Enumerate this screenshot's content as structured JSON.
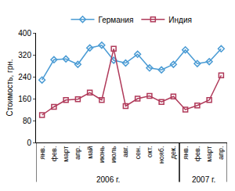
{
  "chart_data": {
    "type": "line",
    "y_label": "Стоимость, грн.",
    "categories": [
      "янв.",
      "фев.",
      "март",
      "апр.",
      "май",
      "июнь",
      "июль",
      "авг.",
      "сен.",
      "окт.",
      "нояб.",
      "дек.",
      "янв.",
      "фев.",
      "март",
      "апр."
    ],
    "x_groups": [
      {
        "label": "2006 г.",
        "from": 0,
        "to": 11
      },
      {
        "label": "2007 г.",
        "from": 12,
        "to": 15
      }
    ],
    "series": [
      {
        "name": "Германия",
        "color": "#4a9bd4",
        "marker": "diamond-open",
        "values": [
          228,
          302,
          305,
          285,
          345,
          355,
          300,
          290,
          322,
          272,
          265,
          285,
          338,
          288,
          295,
          342
        ]
      },
      {
        "name": "Индия",
        "color": "#b03a5a",
        "marker": "square-open",
        "values": [
          100,
          130,
          155,
          158,
          182,
          155,
          342,
          133,
          160,
          170,
          148,
          168,
          120,
          135,
          155,
          245
        ]
      }
    ],
    "ylim": [
      0,
      400
    ],
    "yticks": [
      0,
      80,
      160,
      240,
      320,
      400
    ],
    "grid": false,
    "legend": "top"
  }
}
